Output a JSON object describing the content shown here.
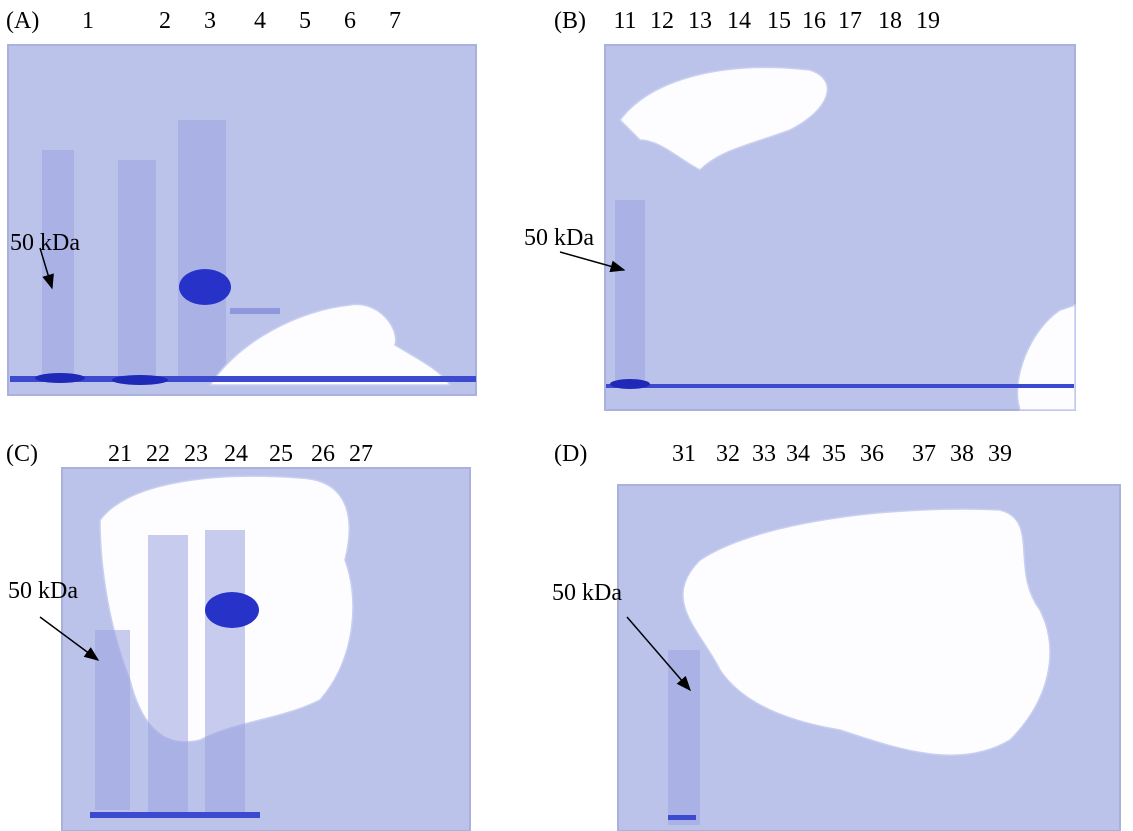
{
  "panels": [
    {
      "label": "(A)",
      "lanes": [
        "1",
        "2",
        "3",
        "4",
        "5",
        "6",
        "7"
      ],
      "marker": "50 kDa"
    },
    {
      "label": "(B)",
      "lanes": [
        "11",
        "12",
        "13",
        "14",
        "15",
        "16",
        "17",
        "18",
        "19"
      ],
      "marker": "50 kDa"
    },
    {
      "label": "(C)",
      "lanes": [
        "21",
        "22",
        "23",
        "24",
        "25",
        "26",
        "27"
      ],
      "marker": "50 kDa"
    },
    {
      "label": "(D)",
      "lanes": [
        "31",
        "32",
        "33",
        "34",
        "35",
        "36",
        "37",
        "38",
        "39"
      ],
      "marker": "50 kDa"
    }
  ]
}
